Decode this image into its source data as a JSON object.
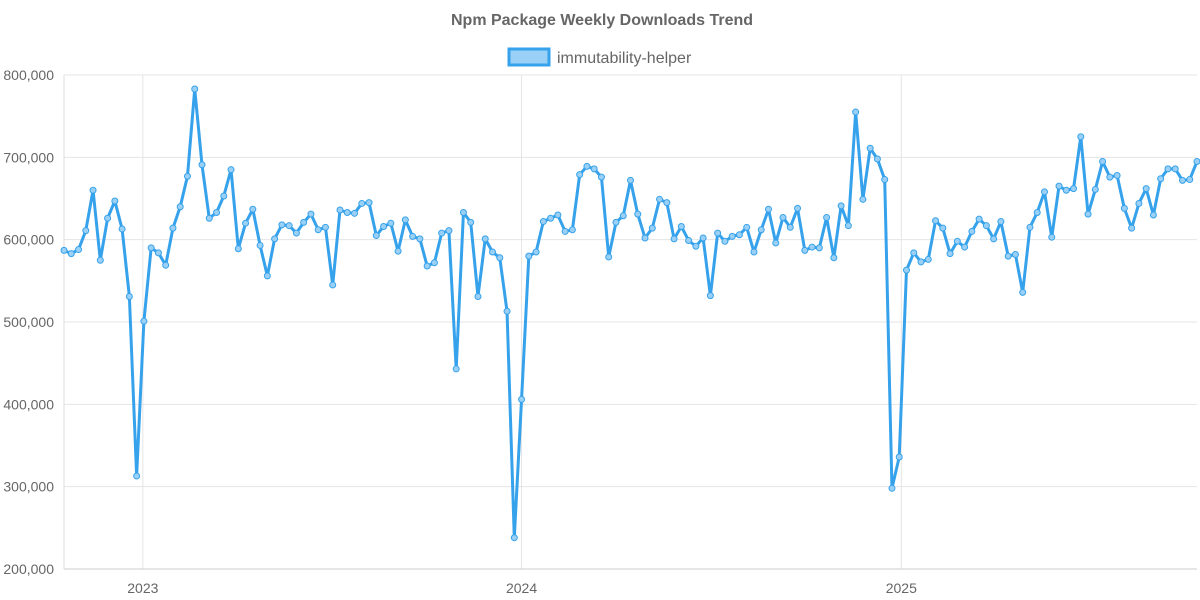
{
  "chart_data": {
    "type": "line",
    "title": "Npm Package Weekly Downloads Trend",
    "xlabel": "",
    "ylabel": "",
    "ylim": [
      200000,
      800000
    ],
    "y_ticks": [
      200000,
      300000,
      400000,
      500000,
      600000,
      700000,
      800000
    ],
    "x_range": [
      "2022-10-17",
      "2025-10-13"
    ],
    "x_ticks": [
      {
        "date": "2023-01-01",
        "label": "2023"
      },
      {
        "date": "2024-01-01",
        "label": "2024"
      },
      {
        "date": "2025-01-01",
        "label": "2025"
      }
    ],
    "grid": true,
    "legend_position": "top-center",
    "colors": {
      "line": "#36a2eb",
      "fill": "#9ad0f5"
    },
    "series": [
      {
        "name": "immutability-helper",
        "points": [
          [
            "2022-10-17",
            587000
          ],
          [
            "2022-10-24",
            583000
          ],
          [
            "2022-10-31",
            588000
          ],
          [
            "2022-11-07",
            611000
          ],
          [
            "2022-11-14",
            660000
          ],
          [
            "2022-11-21",
            575000
          ],
          [
            "2022-11-28",
            626000
          ],
          [
            "2022-12-05",
            647000
          ],
          [
            "2022-12-12",
            613000
          ],
          [
            "2022-12-19",
            531000
          ],
          [
            "2022-12-26",
            313000
          ],
          [
            "2023-01-02",
            501000
          ],
          [
            "2023-01-09",
            590000
          ],
          [
            "2023-01-16",
            584000
          ],
          [
            "2023-01-23",
            569000
          ],
          [
            "2023-01-30",
            614000
          ],
          [
            "2023-02-06",
            640000
          ],
          [
            "2023-02-13",
            677000
          ],
          [
            "2023-02-20",
            783000
          ],
          [
            "2023-02-27",
            691000
          ],
          [
            "2023-03-06",
            626000
          ],
          [
            "2023-03-13",
            633000
          ],
          [
            "2023-03-20",
            653000
          ],
          [
            "2023-03-27",
            685000
          ],
          [
            "2023-04-03",
            589000
          ],
          [
            "2023-04-10",
            620000
          ],
          [
            "2023-04-17",
            637000
          ],
          [
            "2023-04-24",
            593000
          ],
          [
            "2023-05-01",
            556000
          ],
          [
            "2023-05-08",
            601000
          ],
          [
            "2023-05-15",
            618000
          ],
          [
            "2023-05-22",
            617000
          ],
          [
            "2023-05-29",
            608000
          ],
          [
            "2023-06-05",
            621000
          ],
          [
            "2023-06-12",
            631000
          ],
          [
            "2023-06-19",
            612000
          ],
          [
            "2023-06-26",
            615000
          ],
          [
            "2023-07-03",
            545000
          ],
          [
            "2023-07-10",
            636000
          ],
          [
            "2023-07-17",
            633000
          ],
          [
            "2023-07-24",
            632000
          ],
          [
            "2023-07-31",
            644000
          ],
          [
            "2023-08-07",
            645000
          ],
          [
            "2023-08-14",
            605000
          ],
          [
            "2023-08-21",
            616000
          ],
          [
            "2023-08-28",
            620000
          ],
          [
            "2023-09-04",
            586000
          ],
          [
            "2023-09-11",
            624000
          ],
          [
            "2023-09-18",
            604000
          ],
          [
            "2023-09-25",
            601000
          ],
          [
            "2023-10-02",
            568000
          ],
          [
            "2023-10-09",
            572000
          ],
          [
            "2023-10-16",
            608000
          ],
          [
            "2023-10-23",
            611000
          ],
          [
            "2023-10-30",
            443000
          ],
          [
            "2023-11-06",
            633000
          ],
          [
            "2023-11-13",
            621000
          ],
          [
            "2023-11-20",
            531000
          ],
          [
            "2023-11-27",
            601000
          ],
          [
            "2023-12-04",
            585000
          ],
          [
            "2023-12-11",
            578000
          ],
          [
            "2023-12-18",
            513000
          ],
          [
            "2023-12-25",
            238000
          ],
          [
            "2024-01-01",
            406000
          ],
          [
            "2024-01-08",
            580000
          ],
          [
            "2024-01-15",
            585000
          ],
          [
            "2024-01-22",
            622000
          ],
          [
            "2024-01-29",
            626000
          ],
          [
            "2024-02-05",
            630000
          ],
          [
            "2024-02-12",
            610000
          ],
          [
            "2024-02-19",
            612000
          ],
          [
            "2024-02-26",
            679000
          ],
          [
            "2024-03-04",
            689000
          ],
          [
            "2024-03-11",
            686000
          ],
          [
            "2024-03-18",
            676000
          ],
          [
            "2024-03-25",
            579000
          ],
          [
            "2024-04-01",
            621000
          ],
          [
            "2024-04-08",
            629000
          ],
          [
            "2024-04-15",
            672000
          ],
          [
            "2024-04-22",
            631000
          ],
          [
            "2024-04-29",
            602000
          ],
          [
            "2024-05-06",
            614000
          ],
          [
            "2024-05-13",
            649000
          ],
          [
            "2024-05-20",
            645000
          ],
          [
            "2024-05-27",
            601000
          ],
          [
            "2024-06-03",
            616000
          ],
          [
            "2024-06-10",
            599000
          ],
          [
            "2024-06-17",
            592000
          ],
          [
            "2024-06-24",
            602000
          ],
          [
            "2024-07-01",
            532000
          ],
          [
            "2024-07-08",
            608000
          ],
          [
            "2024-07-15",
            598000
          ],
          [
            "2024-07-22",
            604000
          ],
          [
            "2024-07-29",
            606000
          ],
          [
            "2024-08-05",
            615000
          ],
          [
            "2024-08-12",
            585000
          ],
          [
            "2024-08-19",
            612000
          ],
          [
            "2024-08-26",
            637000
          ],
          [
            "2024-09-02",
            596000
          ],
          [
            "2024-09-09",
            627000
          ],
          [
            "2024-09-16",
            615000
          ],
          [
            "2024-09-23",
            638000
          ],
          [
            "2024-09-30",
            587000
          ],
          [
            "2024-10-07",
            591000
          ],
          [
            "2024-10-14",
            590000
          ],
          [
            "2024-10-21",
            627000
          ],
          [
            "2024-10-28",
            578000
          ],
          [
            "2024-11-04",
            641000
          ],
          [
            "2024-11-11",
            617000
          ],
          [
            "2024-11-18",
            755000
          ],
          [
            "2024-11-25",
            649000
          ],
          [
            "2024-12-02",
            711000
          ],
          [
            "2024-12-09",
            698000
          ],
          [
            "2024-12-16",
            673000
          ],
          [
            "2024-12-23",
            298000
          ],
          [
            "2024-12-30",
            336000
          ],
          [
            "2025-01-06",
            563000
          ],
          [
            "2025-01-13",
            584000
          ],
          [
            "2025-01-20",
            573000
          ],
          [
            "2025-01-27",
            576000
          ],
          [
            "2025-02-03",
            623000
          ],
          [
            "2025-02-10",
            614000
          ],
          [
            "2025-02-17",
            583000
          ],
          [
            "2025-02-24",
            598000
          ],
          [
            "2025-03-03",
            591000
          ],
          [
            "2025-03-10",
            610000
          ],
          [
            "2025-03-17",
            625000
          ],
          [
            "2025-03-24",
            617000
          ],
          [
            "2025-03-31",
            601000
          ],
          [
            "2025-04-07",
            622000
          ],
          [
            "2025-04-14",
            580000
          ],
          [
            "2025-04-21",
            582000
          ],
          [
            "2025-04-28",
            536000
          ],
          [
            "2025-05-05",
            615000
          ],
          [
            "2025-05-12",
            633000
          ],
          [
            "2025-05-19",
            658000
          ],
          [
            "2025-05-26",
            603000
          ],
          [
            "2025-06-02",
            665000
          ],
          [
            "2025-06-09",
            660000
          ],
          [
            "2025-06-16",
            662000
          ],
          [
            "2025-06-23",
            725000
          ],
          [
            "2025-06-30",
            631000
          ],
          [
            "2025-07-07",
            661000
          ],
          [
            "2025-07-14",
            695000
          ],
          [
            "2025-07-21",
            676000
          ],
          [
            "2025-07-28",
            678000
          ],
          [
            "2025-08-04",
            638000
          ],
          [
            "2025-08-11",
            614000
          ],
          [
            "2025-08-18",
            644000
          ],
          [
            "2025-08-25",
            662000
          ],
          [
            "2025-09-01",
            630000
          ],
          [
            "2025-09-08",
            674000
          ],
          [
            "2025-09-15",
            686000
          ],
          [
            "2025-09-22",
            686000
          ],
          [
            "2025-09-29",
            672000
          ],
          [
            "2025-10-06",
            673000
          ],
          [
            "2025-10-13",
            695000
          ]
        ]
      }
    ]
  }
}
